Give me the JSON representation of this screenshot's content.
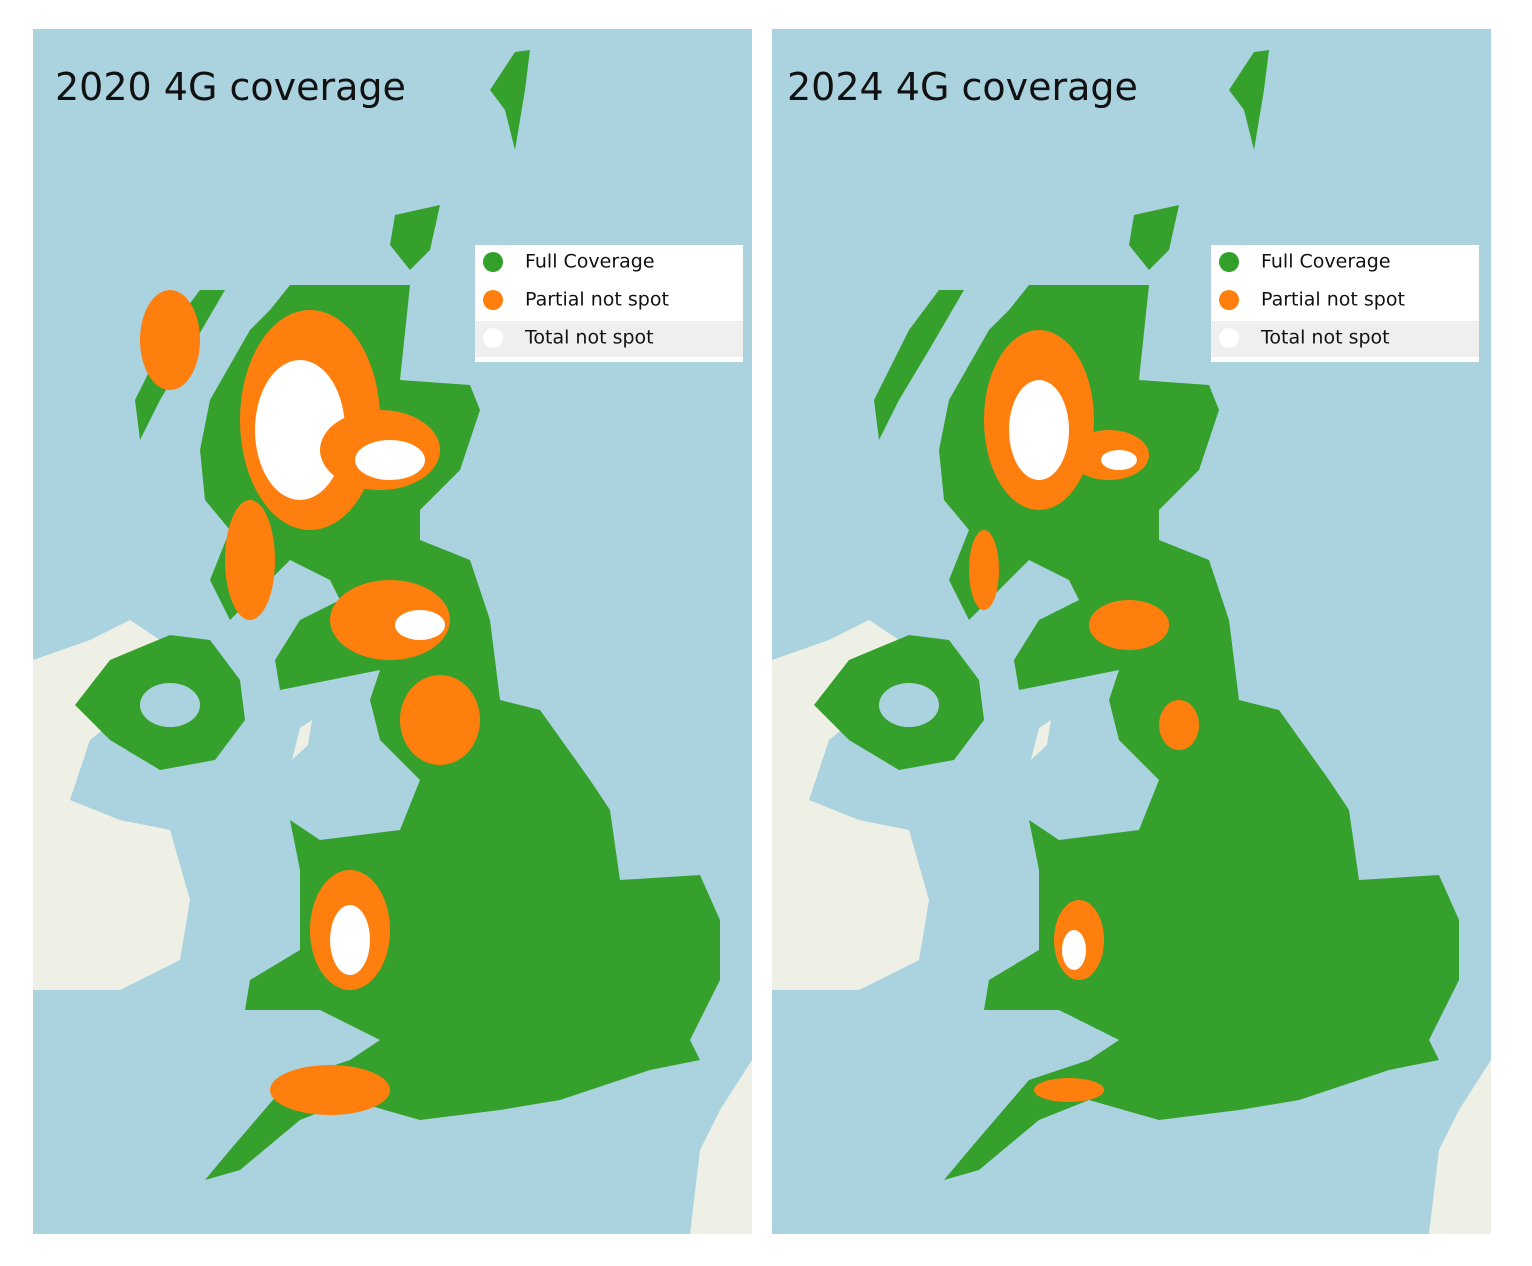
{
  "panels": [
    {
      "title": "2020 4G coverage",
      "legend": [
        {
          "label": "Full Coverage",
          "color": "#33a02c"
        },
        {
          "label": "Partial not spot",
          "color": "#ff7f0e"
        },
        {
          "label": "Total not spot",
          "color": "#ffffff"
        }
      ]
    },
    {
      "title": "2024 4G coverage",
      "legend": [
        {
          "label": "Full Coverage",
          "color": "#33a02c"
        },
        {
          "label": "Partial not spot",
          "color": "#ff7f0e"
        },
        {
          "label": "Total not spot",
          "color": "#ffffff"
        }
      ]
    }
  ]
}
